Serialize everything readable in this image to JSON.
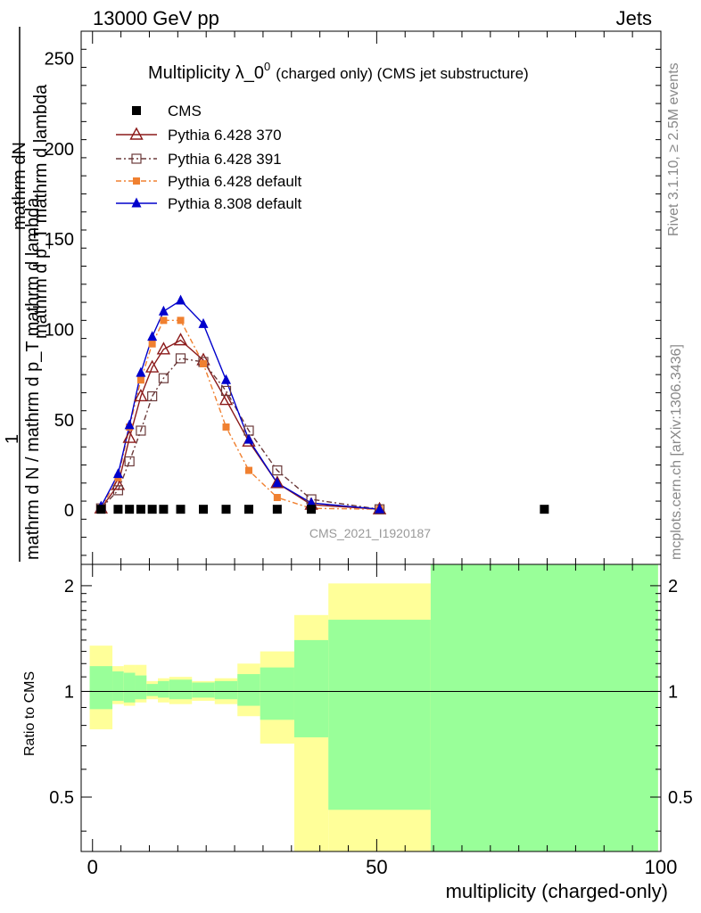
{
  "header": {
    "energy_label": "13000 GeV pp",
    "process_label": "Jets"
  },
  "side_labels": {
    "rivet": "Rivet 3.1.10, ≥ 2.5M events",
    "mcplots": "mcplots.cern.ch [arXiv:1306.3436]"
  },
  "chart_data": {
    "type": "line",
    "title_main": "Multiplicity λ_0",
    "title_sup": "0",
    "title_rest": "(charged only) (CMS jet substructure)",
    "watermark": "CMS_2021_I1920187",
    "ylabel_top": "mathrm dN",
    "ylabel_top2": "mathrm d p_T mathrm d lambda",
    "ylabel_one": "1",
    "ylabel_bottom": "mathrm d N / mathrm d p_T mathrm d lambda",
    "xlabel": "multiplicity (charged-only)",
    "ratio_ylabel": "Ratio to CMS",
    "xlim": [
      -2,
      100
    ],
    "ylim": [
      -30,
      265
    ],
    "ratio_ylim": [
      0.35,
      2.3
    ],
    "x_ticks": [
      "0",
      "50",
      "100"
    ],
    "y_ticks": [
      "0",
      "50",
      "100",
      "150",
      "200",
      "250"
    ],
    "ratio_ticks": [
      "0.5",
      "1",
      "2"
    ],
    "legend_position": "top-left",
    "series": [
      {
        "name": "CMS",
        "color": "#000000",
        "marker": "square-filled",
        "x": [
          1.5,
          4.5,
          6.5,
          8.5,
          10.5,
          12.5,
          15.5,
          19.5,
          23.5,
          27.5,
          32.5,
          38.5,
          79.5
        ],
        "y": [
          0.5,
          0.5,
          0.5,
          0.5,
          0.5,
          0.5,
          0.5,
          0.5,
          0.5,
          0.5,
          0.5,
          0.5,
          0.5
        ]
      },
      {
        "name": "Pythia 6.428 370",
        "color": "#8b1a1a",
        "marker": "triangle-open",
        "dash": "",
        "x": [
          1.5,
          4.5,
          6.5,
          8.5,
          10.5,
          12.5,
          15.5,
          19.5,
          23.5,
          27.5,
          32.5,
          38.5,
          50.5
        ],
        "y": [
          1,
          14,
          40,
          63,
          79,
          89,
          94,
          83,
          61,
          38,
          15,
          3,
          0.5
        ]
      },
      {
        "name": "Pythia 6.428 391",
        "color": "#6b3a3a",
        "marker": "square-open",
        "dash": "6 3 2 3",
        "x": [
          1.5,
          4.5,
          6.5,
          8.5,
          10.5,
          12.5,
          15.5,
          19.5,
          23.5,
          27.5,
          32.5,
          38.5,
          50.5
        ],
        "y": [
          1,
          11,
          27,
          44,
          63,
          73,
          84,
          82,
          66,
          44,
          22,
          6,
          0.5
        ]
      },
      {
        "name": "Pythia 6.428 default",
        "color": "#f08030",
        "marker": "square-filled-small",
        "dash": "6 3 2 3",
        "x": [
          1.5,
          4.5,
          6.5,
          8.5,
          10.5,
          12.5,
          15.5,
          19.5,
          23.5,
          27.5,
          32.5,
          38.5,
          50.5
        ],
        "y": [
          1,
          18,
          46,
          72,
          92,
          105,
          105,
          81,
          46,
          22,
          7,
          1,
          0.5
        ]
      },
      {
        "name": "Pythia 8.308 default",
        "color": "#0000cc",
        "marker": "triangle-filled",
        "dash": "",
        "x": [
          1.5,
          4.5,
          6.5,
          8.5,
          10.5,
          12.5,
          15.5,
          19.5,
          23.5,
          27.5,
          32.5,
          38.5,
          50.5
        ],
        "y": [
          2,
          20,
          47,
          76,
          96,
          110,
          116,
          103,
          72,
          39,
          15,
          4,
          0.5
        ]
      }
    ],
    "ratio_bands": [
      {
        "x0": -0.5,
        "x1": 3.5,
        "yellow": [
          0.78,
          1.35
        ],
        "green": [
          0.89,
          1.18
        ]
      },
      {
        "x0": 3.5,
        "x1": 5.5,
        "yellow": [
          0.92,
          1.18
        ],
        "green": [
          0.94,
          1.14
        ]
      },
      {
        "x0": 5.5,
        "x1": 7.5,
        "yellow": [
          0.91,
          1.19
        ],
        "green": [
          0.93,
          1.13
        ]
      },
      {
        "x0": 7.5,
        "x1": 9.5,
        "yellow": [
          0.93,
          1.19
        ],
        "green": [
          0.95,
          1.11
        ]
      },
      {
        "x0": 9.5,
        "x1": 11.5,
        "yellow": [
          0.95,
          1.07
        ],
        "green": [
          0.97,
          1.05
        ]
      },
      {
        "x0": 11.5,
        "x1": 13.5,
        "yellow": [
          0.93,
          1.09
        ],
        "green": [
          0.96,
          1.07
        ]
      },
      {
        "x0": 13.5,
        "x1": 17.5,
        "yellow": [
          0.92,
          1.1
        ],
        "green": [
          0.95,
          1.08
        ]
      },
      {
        "x0": 17.5,
        "x1": 21.5,
        "yellow": [
          0.94,
          1.07
        ],
        "green": [
          0.96,
          1.06
        ]
      },
      {
        "x0": 21.5,
        "x1": 25.5,
        "yellow": [
          0.92,
          1.09
        ],
        "green": [
          0.95,
          1.07
        ]
      },
      {
        "x0": 25.5,
        "x1": 29.5,
        "yellow": [
          0.85,
          1.2
        ],
        "green": [
          0.91,
          1.12
        ]
      },
      {
        "x0": 29.5,
        "x1": 35.5,
        "yellow": [
          0.71,
          1.3
        ],
        "green": [
          0.83,
          1.17
        ]
      },
      {
        "x0": 35.5,
        "x1": 41.5,
        "yellow": [
          0.3,
          1.65
        ],
        "green": [
          0.74,
          1.4
        ]
      },
      {
        "x0": 41.5,
        "x1": 59.5,
        "yellow": [
          0.3,
          2.03
        ],
        "green": [
          0.46,
          1.6
        ]
      },
      {
        "x0": 59.5,
        "x1": 99.5,
        "yellow": [
          0.3,
          2.4
        ],
        "green": [
          0.3,
          2.4
        ]
      }
    ]
  }
}
